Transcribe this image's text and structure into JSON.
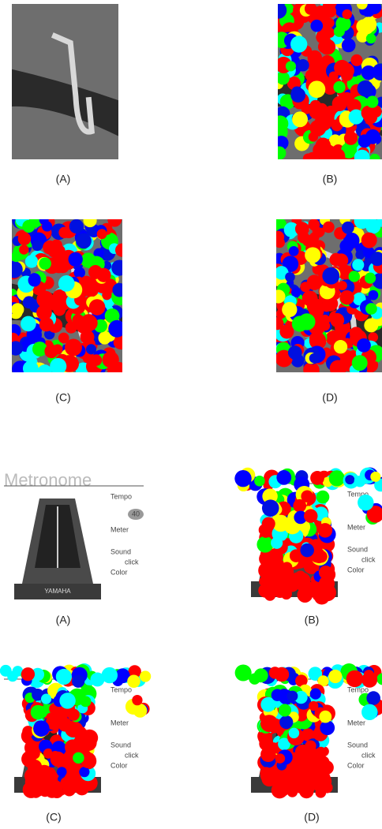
{
  "top": {
    "captions": [
      "(A)",
      "(B)",
      "(C)",
      "(D)"
    ]
  },
  "bottom": {
    "captions": [
      "(A)",
      "(B)",
      "(C)",
      "(D)"
    ],
    "metronome": {
      "title": "Metronome",
      "tempo": "Tempo",
      "tempo_value": "40",
      "meter": "Meter",
      "sound": "Sound",
      "click": "click",
      "color": "Color",
      "brand": "YAMAHA"
    }
  }
}
